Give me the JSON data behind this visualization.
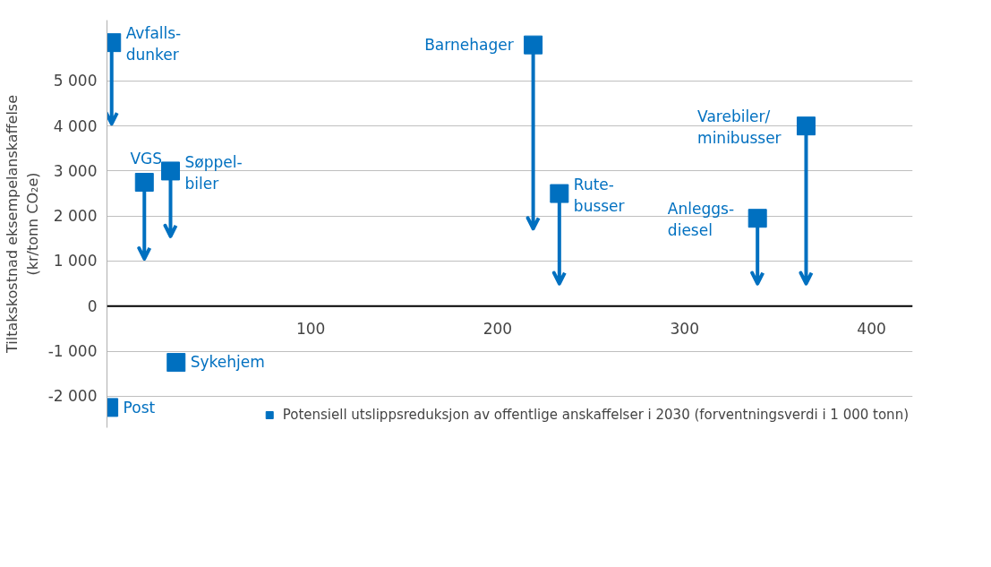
{
  "chart_data": {
    "type": "scatter",
    "ylabel": "Tiltakskostnad eksempelanskaffelse\n(kr/tonn CO₂e)",
    "xlim": [
      -9,
      422
    ],
    "ylim": [
      -2700,
      6350
    ],
    "xticks": [
      100,
      200,
      300,
      400
    ],
    "yticks": [
      {
        "value": -2000,
        "label": "-2 000"
      },
      {
        "value": -1000,
        "label": "-1 000"
      },
      0,
      {
        "value": 1000,
        "label": "1 000"
      },
      {
        "value": 2000,
        "label": "2 000"
      },
      {
        "value": 3000,
        "label": "3 000"
      },
      {
        "value": 4000,
        "label": "4 000"
      },
      {
        "value": 5000,
        "label": "5 000"
      }
    ],
    "grid": "y",
    "legend": "bottom",
    "marker": "square",
    "series": [
      {
        "name": "Potensiell utslippsreduksjon av offentlige anskaffelser i 2030 (forventningsverdi i 1 000 tonn)",
        "color": "#0070c0",
        "x": [
          -6.5,
          11,
          25,
          28,
          -8,
          219,
          233,
          339,
          365
        ],
        "values": [
          5850,
          2750,
          3000,
          -1250,
          -2250,
          5800,
          2500,
          1950,
          4000
        ],
        "errors": [
          [
            4050,
            5850
          ],
          [
            1050,
            2750
          ],
          [
            1550,
            3000
          ],
          null,
          null,
          [
            1720,
            5800
          ],
          [
            500,
            2500
          ],
          [
            500,
            1950
          ],
          [
            500,
            4000
          ]
        ]
      }
    ],
    "annotations": [
      {
        "text": "Avfalls-\ndunker",
        "x": -6.5,
        "y": 5850
      },
      {
        "text": "VGS",
        "x": 11,
        "y": 2750
      },
      {
        "text": "Søppel-\nbiler",
        "x": 25,
        "y": 3000
      },
      {
        "text": "Sykehjem",
        "x": 28,
        "y": -1250
      },
      {
        "text": "Post",
        "x": -8,
        "y": -2250
      },
      {
        "text": "Barnehager",
        "x": 219,
        "y": 5800
      },
      {
        "text": "Rute-\nbusser",
        "x": 233,
        "y": 2500
      },
      {
        "text": "Anleggs-\ndiesel",
        "x": 339,
        "y": 1950
      },
      {
        "text": "Varebiler/\nminibusser",
        "x": 365,
        "y": 4000
      }
    ]
  }
}
